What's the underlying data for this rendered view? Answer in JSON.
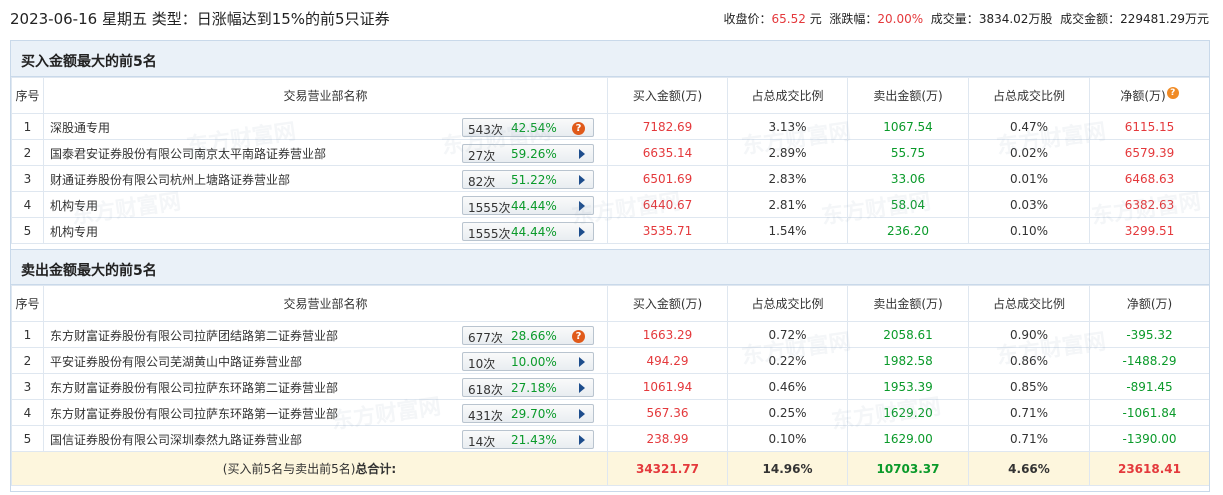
{
  "header": {
    "title": "2023-06-16 星期五 类型：日涨幅达到15%的前5只证券",
    "close_label": "收盘价：",
    "close_value": "65.52",
    "close_unit": "元",
    "change_label": "涨跌幅：",
    "change_value": "20.00%",
    "volume_label": "成交量：",
    "volume_value": "3834.02万股",
    "amount_label": "成交金额：",
    "amount_value": "229481.29万元"
  },
  "watermark": "东方财富网",
  "columns": {
    "seq": "序号",
    "name": "交易营业部名称",
    "buy": "买入金额(万)",
    "buy_ratio": "占总成交比例",
    "sell": "卖出金额(万)",
    "sell_ratio": "占总成交比例",
    "net": "净额(万)"
  },
  "buy_section": {
    "title": "买入金额最大的前5名",
    "rows": [
      {
        "seq": "1",
        "name": "深股通专用",
        "count": "543次",
        "pct": "42.54%",
        "icon": "question-icon",
        "buy": "7182.69",
        "buy_ratio": "3.13%",
        "sell": "1067.54",
        "sell_ratio": "0.47%",
        "net": "6115.15"
      },
      {
        "seq": "2",
        "name": "国泰君安证券股份有限公司南京太平南路证券营业部",
        "count": "27次",
        "pct": "59.26%",
        "icon": "arrow-right-icon",
        "buy": "6635.14",
        "buy_ratio": "2.89%",
        "sell": "55.75",
        "sell_ratio": "0.02%",
        "net": "6579.39"
      },
      {
        "seq": "3",
        "name": "财通证券股份有限公司杭州上塘路证券营业部",
        "count": "82次",
        "pct": "51.22%",
        "icon": "arrow-right-icon",
        "buy": "6501.69",
        "buy_ratio": "2.83%",
        "sell": "33.06",
        "sell_ratio": "0.01%",
        "net": "6468.63"
      },
      {
        "seq": "4",
        "name": "机构专用",
        "count": "1555次",
        "pct": "44.44%",
        "icon": "arrow-right-icon",
        "buy": "6440.67",
        "buy_ratio": "2.81%",
        "sell": "58.04",
        "sell_ratio": "0.03%",
        "net": "6382.63"
      },
      {
        "seq": "5",
        "name": "机构专用",
        "count": "1555次",
        "pct": "44.44%",
        "icon": "arrow-right-icon",
        "buy": "3535.71",
        "buy_ratio": "1.54%",
        "sell": "236.20",
        "sell_ratio": "0.10%",
        "net": "3299.51"
      }
    ]
  },
  "sell_section": {
    "title": "卖出金额最大的前5名",
    "rows": [
      {
        "seq": "1",
        "name": "东方财富证券股份有限公司拉萨团结路第二证券营业部",
        "count": "677次",
        "pct": "28.66%",
        "icon": "question-icon",
        "buy": "1663.29",
        "buy_ratio": "0.72%",
        "sell": "2058.61",
        "sell_ratio": "0.90%",
        "net": "-395.32"
      },
      {
        "seq": "2",
        "name": "平安证券股份有限公司芜湖黄山中路证券营业部",
        "count": "10次",
        "pct": "10.00%",
        "icon": "arrow-right-icon",
        "buy": "494.29",
        "buy_ratio": "0.22%",
        "sell": "1982.58",
        "sell_ratio": "0.86%",
        "net": "-1488.29"
      },
      {
        "seq": "3",
        "name": "东方财富证券股份有限公司拉萨东环路第二证券营业部",
        "count": "618次",
        "pct": "27.18%",
        "icon": "arrow-right-icon",
        "buy": "1061.94",
        "buy_ratio": "0.46%",
        "sell": "1953.39",
        "sell_ratio": "0.85%",
        "net": "-891.45"
      },
      {
        "seq": "4",
        "name": "东方财富证券股份有限公司拉萨东环路第一证券营业部",
        "count": "431次",
        "pct": "29.70%",
        "icon": "arrow-right-icon",
        "buy": "567.36",
        "buy_ratio": "0.25%",
        "sell": "1629.20",
        "sell_ratio": "0.71%",
        "net": "-1061.84"
      },
      {
        "seq": "5",
        "name": "国信证券股份有限公司深圳泰然九路证券营业部",
        "count": "14次",
        "pct": "21.43%",
        "icon": "arrow-right-icon",
        "buy": "238.99",
        "buy_ratio": "0.10%",
        "sell": "1629.00",
        "sell_ratio": "0.71%",
        "net": "-1390.00"
      }
    ]
  },
  "total": {
    "label_prefix": "(买入前5名与卖出前5名)",
    "label_bold": "总合计:",
    "buy": "34321.77",
    "buy_ratio": "14.96%",
    "sell": "10703.37",
    "sell_ratio": "4.66%",
    "net": "23618.41"
  },
  "colors": {
    "red": "#e4393c",
    "green": "#0a9a2a",
    "header_bg": "#eaf1f8",
    "total_bg": "#fdf6dd"
  }
}
